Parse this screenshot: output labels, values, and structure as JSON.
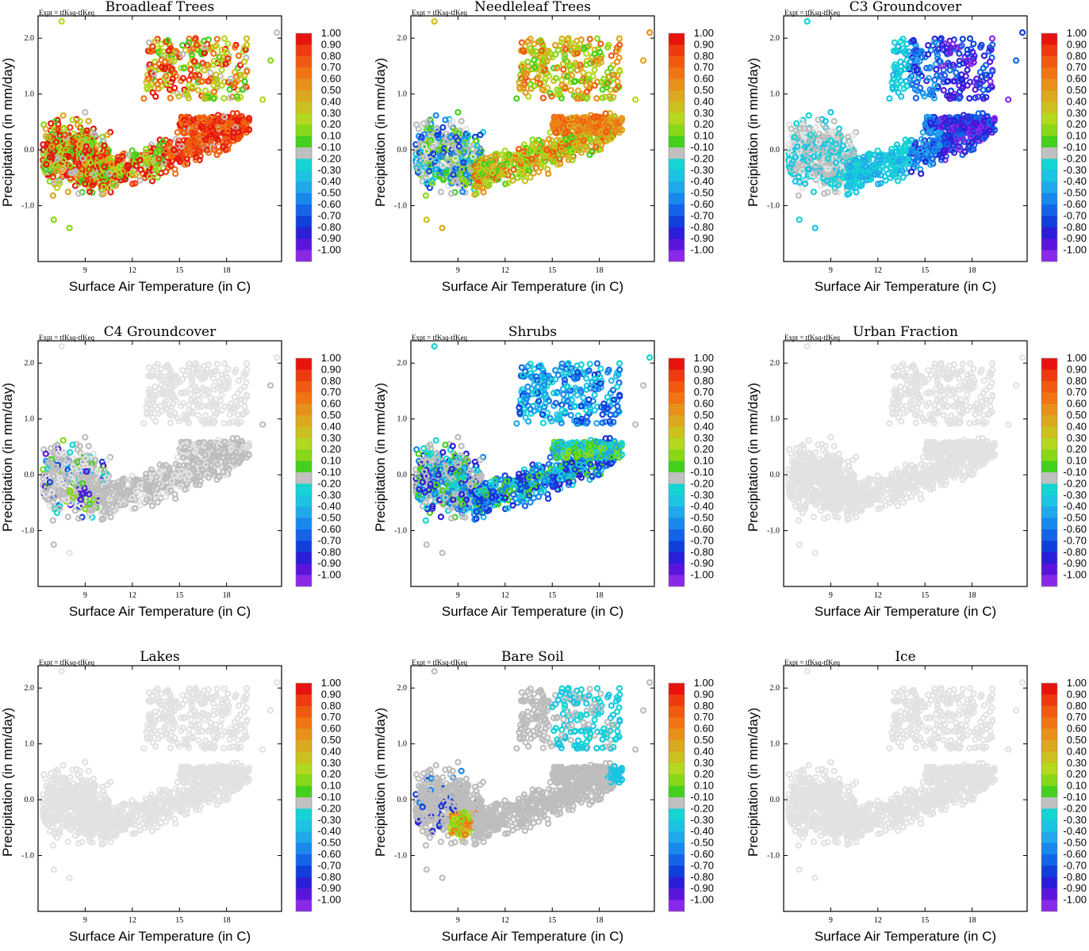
{
  "chart_data": {
    "type": "scatter",
    "layout": "3x3 grid of scatter panels",
    "xlabel": "Surface Air Temperature (in C)",
    "ylabel": "Precipitation (in mm/day)",
    "expt_label": "Expt = tfKsq-tfKeq",
    "x_ticks": [
      "9",
      "12",
      "15",
      "18"
    ],
    "y_ticks": [
      "2.0",
      "1.0",
      "0.0",
      "-1.0"
    ],
    "xlim": [
      6.0,
      21.5
    ],
    "ylim": [
      -2.0,
      2.4
    ],
    "colorbar": {
      "labels": [
        "1.00",
        "0.90",
        "0.80",
        "0.70",
        "0.60",
        "0.50",
        "0.40",
        "0.30",
        "0.20",
        "0.10",
        "-0.10",
        "-0.20",
        "-0.30",
        "-0.40",
        "-0.50",
        "-0.60",
        "-0.70",
        "-0.80",
        "-0.90",
        "-1.00"
      ],
      "colors": [
        "#e8130f",
        "#ee3a0e",
        "#f05a10",
        "#f07414",
        "#e8901a",
        "#dca820",
        "#ccc01e",
        "#b4d81e",
        "#88d818",
        "#44d01e",
        "#c0c0c0",
        "#14d4d4",
        "#1cc4e4",
        "#20a8ea",
        "#1888ec",
        "#1464e8",
        "#1040dc",
        "#2a1ed8",
        "#5a14dc",
        "#8a28e8"
      ]
    },
    "panels": [
      {
        "title": "Broadleaf Trees",
        "scheme": "broadleaf"
      },
      {
        "title": "Needleleaf Trees",
        "scheme": "needleleaf"
      },
      {
        "title": "C3 Groundcover",
        "scheme": "c3"
      },
      {
        "title": "C4 Groundcover",
        "scheme": "c4"
      },
      {
        "title": "Shrubs",
        "scheme": "shrubs"
      },
      {
        "title": "Urban Fraction",
        "scheme": "gray"
      },
      {
        "title": "Lakes",
        "scheme": "gray"
      },
      {
        "title": "Bare Soil",
        "scheme": "bare"
      },
      {
        "title": "Ice",
        "scheme": "gray"
      }
    ]
  }
}
